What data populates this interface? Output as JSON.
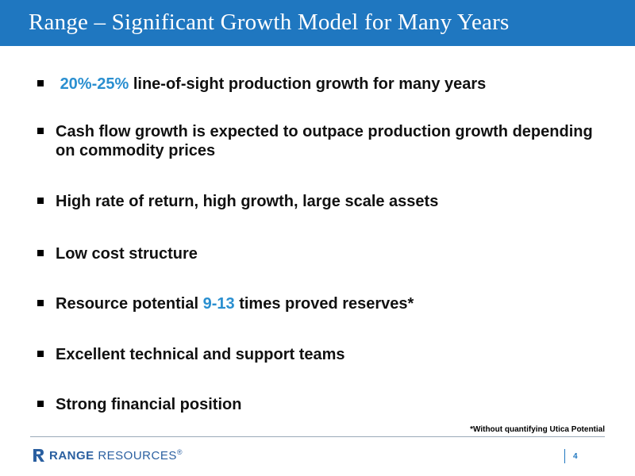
{
  "slide": {
    "title": "Range – Significant Growth Model for Many Years"
  },
  "bullets": [
    {
      "accent": "20%-25%",
      "text": " line-of-sight production growth for many years"
    },
    {
      "text": "Cash flow growth is expected to outpace production growth depending on commodity prices"
    },
    {
      "text": "High rate of return, high growth, large scale assets"
    },
    {
      "text": "Low cost structure"
    },
    {
      "pre": "Resource potential ",
      "accent": "9-13",
      "post": " times proved reserves*"
    },
    {
      "text": "Excellent technical and support teams"
    },
    {
      "text": "Strong financial position"
    }
  ],
  "footnote": "*Without quantifying Utica Potential",
  "footer": {
    "logo_word1": "RANGE",
    "logo_word2": " RESOURCES",
    "logo_tm": "®",
    "page_number": "4"
  },
  "colors": {
    "title_bar": "#1f77c0",
    "accent": "#2a8fd0",
    "logo": "#2a5fa0"
  }
}
